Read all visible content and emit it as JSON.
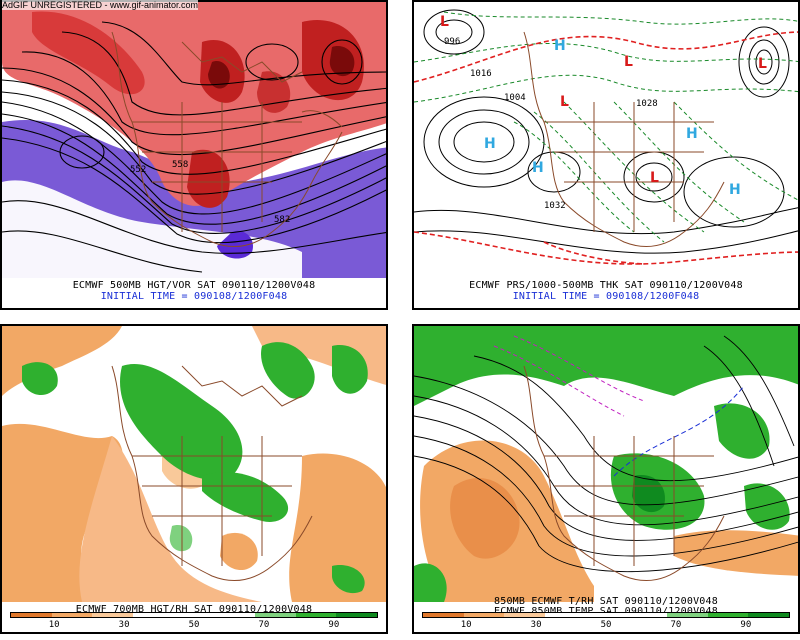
{
  "watermark": "AdGIF UNREGISTERED - www.gif-animator.com",
  "panels": {
    "top_left": {
      "caption": "ECMWF 500MB HGT/VOR SAT 090110/1200V048",
      "subcaption": "INITIAL TIME = 090108/1200F048",
      "contour_labels": [
        "552",
        "558",
        "582"
      ]
    },
    "top_right": {
      "caption": "ECMWF PRS/1000-500MB THK SAT 090110/1200V048",
      "subcaption": "INITIAL TIME = 090108/1200F048",
      "high_symbol": "H",
      "low_symbol": "L",
      "contour_labels": [
        "996",
        "1016",
        "1004",
        "1028",
        "1032"
      ]
    },
    "bottom_left": {
      "caption": "ECMWF 700MB HGT/RH SAT 090110/1200V048",
      "legend_ticks": [
        "10",
        "30",
        "50",
        "70",
        "90"
      ],
      "legend_colors": [
        "#e0782c",
        "#f2a865",
        "#f9c99a",
        "#ffffff",
        "#ffffff",
        "#ffffff",
        "#7fd17f",
        "#2fb02f",
        "#0f8a1f"
      ]
    },
    "bottom_right": {
      "caption": "850MB ECMWF T/RH SAT 090110/1200V048",
      "caption2": "ECMWF 850MB TEMP SAT 090110/1200V048",
      "legend_ticks": [
        "10",
        "30",
        "50",
        "70",
        "90"
      ],
      "legend_colors": [
        "#e0782c",
        "#f2a865",
        "#f9c99a",
        "#ffffff",
        "#ffffff",
        "#ffffff",
        "#7fd17f",
        "#2fb02f",
        "#0f8a1f"
      ]
    }
  },
  "colors": {
    "vorticity_red": "#d83a3a",
    "vorticity_light": "#f2a0a0",
    "vorticity_dark": "#8a1010",
    "negative_vort": "#7a5ad6",
    "high_blue": "#30a8e0",
    "low_red": "#d81a1a",
    "thickness_green": "#1a8a2a",
    "thickness_red": "#e02020",
    "dry_orange": "#f2a865",
    "moist_green": "#2fb02f",
    "coast_brown": "#8a4a2a"
  }
}
